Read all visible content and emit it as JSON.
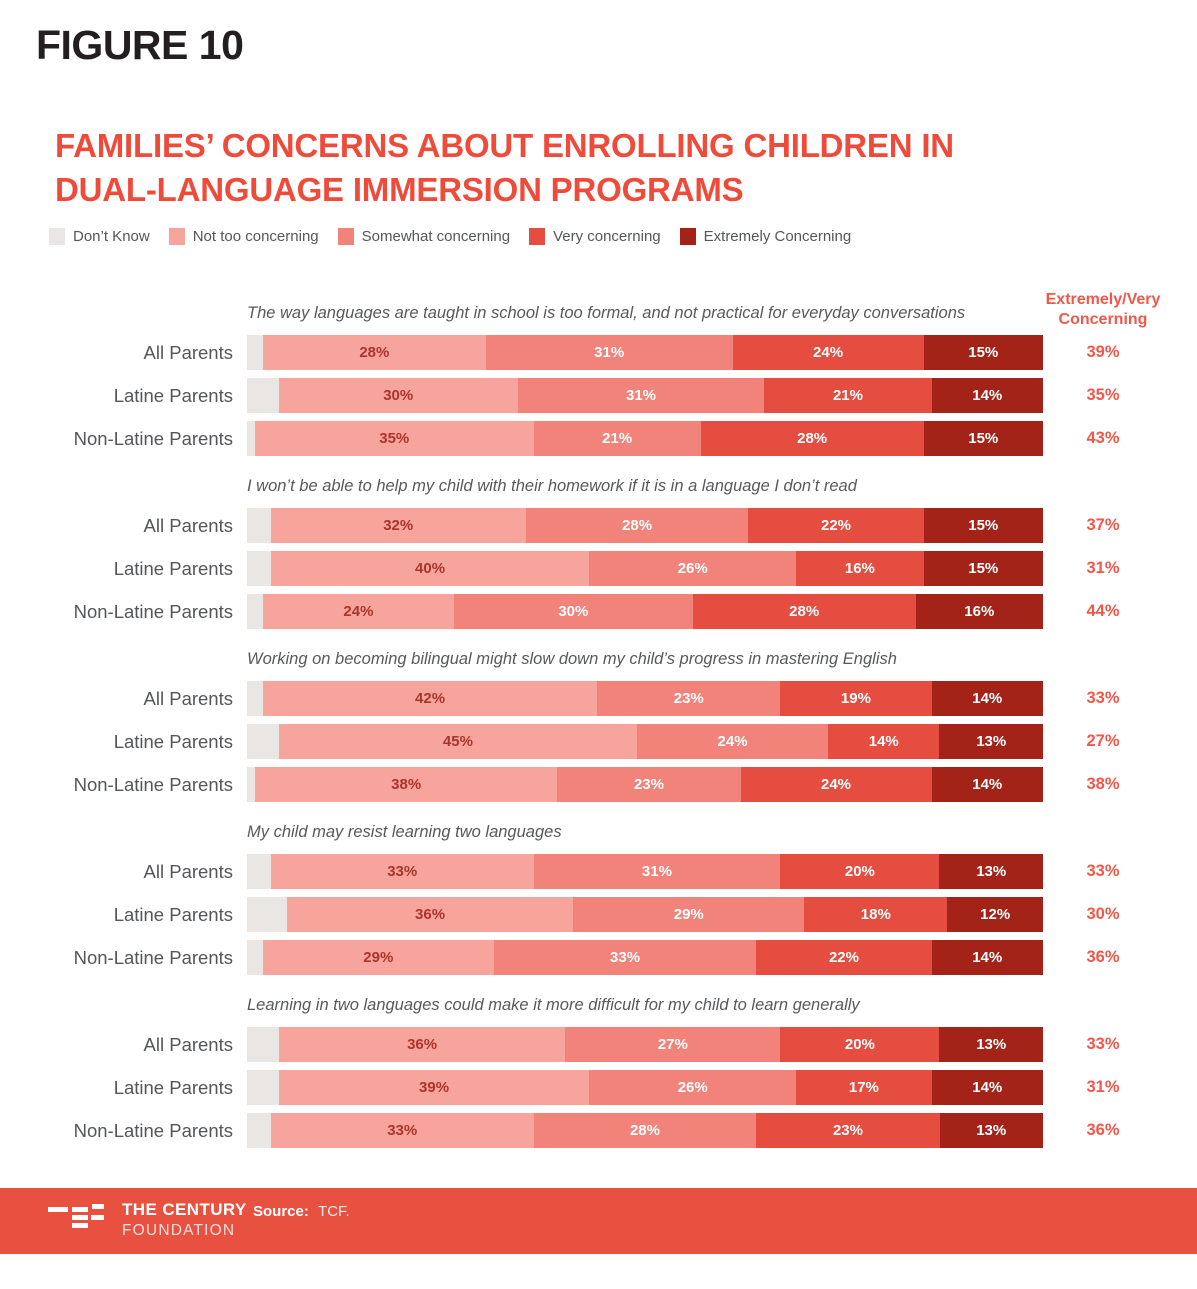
{
  "header": {
    "figure_label": "FIGURE 10"
  },
  "title": {
    "line1": "FAMILIES’ CONCERNS ABOUT ENROLLING CHILDREN IN",
    "line2": "DUAL-LANGUAGE IMMERSION PROGRAMS",
    "color": "#ef4b3a"
  },
  "legend": {
    "items": [
      {
        "label": "Don’t Know",
        "color": "#e9e6e4"
      },
      {
        "label": "Not too concerning",
        "color": "#f7a49c"
      },
      {
        "label": "Somewhat concerning",
        "color": "#f2837b"
      },
      {
        "label": "Very concerning",
        "color": "#e44d40"
      },
      {
        "label": "Extremely Concerning",
        "color": "#a32318"
      }
    ]
  },
  "summary_column": {
    "header": "Extremely/Very Concerning",
    "color": "#f25749"
  },
  "chart_data": {
    "type": "bar",
    "variant": "horizontal-100pct-stacked",
    "unit": "%",
    "xlim": [
      0,
      100
    ],
    "series_names": [
      "Don’t Know",
      "Not too concerning",
      "Somewhat concerning",
      "Very concerning",
      "Extremely Concerning"
    ],
    "row_categories": [
      "All Parents",
      "Latine Parents",
      "Non-Latine Parents"
    ],
    "summary_definition": "Extremely/Very Concerning",
    "groups": [
      {
        "question": "The way languages are taught in school is too formal, and not practical for everyday conversations",
        "rows": [
          {
            "label": "All Parents",
            "values": [
              2,
              28,
              31,
              24,
              15
            ],
            "summary": "39%"
          },
          {
            "label": "Latine Parents",
            "values": [
              4,
              30,
              31,
              21,
              14
            ],
            "summary": "35%"
          },
          {
            "label": "Non-Latine Parents",
            "values": [
              1,
              35,
              21,
              28,
              15
            ],
            "summary": "43%"
          }
        ]
      },
      {
        "question": "I won’t be able to help my child with their homework if it is in a language I don’t read",
        "rows": [
          {
            "label": "All Parents",
            "values": [
              3,
              32,
              28,
              22,
              15
            ],
            "summary": "37%"
          },
          {
            "label": "Latine Parents",
            "values": [
              3,
              40,
              26,
              16,
              15
            ],
            "summary": "31%"
          },
          {
            "label": "Non-Latine Parents",
            "values": [
              2,
              24,
              30,
              28,
              16
            ],
            "summary": "44%"
          }
        ]
      },
      {
        "question": "Working on becoming bilingual might slow down my child’s progress in mastering English",
        "rows": [
          {
            "label": "All Parents",
            "values": [
              2,
              42,
              23,
              19,
              14
            ],
            "summary": "33%"
          },
          {
            "label": "Latine Parents",
            "values": [
              4,
              45,
              24,
              14,
              13
            ],
            "summary": "27%"
          },
          {
            "label": "Non-Latine Parents",
            "values": [
              1,
              38,
              23,
              24,
              14
            ],
            "summary": "38%"
          }
        ]
      },
      {
        "question": "My child may resist learning two languages",
        "rows": [
          {
            "label": "All Parents",
            "values": [
              3,
              33,
              31,
              20,
              13
            ],
            "summary": "33%"
          },
          {
            "label": "Latine Parents",
            "values": [
              5,
              36,
              29,
              18,
              12
            ],
            "summary": "30%"
          },
          {
            "label": "Non-Latine Parents",
            "values": [
              2,
              29,
              33,
              22,
              14
            ],
            "summary": "36%"
          }
        ]
      },
      {
        "question": "Learning in two languages could make it more difficult for my child to learn generally",
        "rows": [
          {
            "label": "All Parents",
            "values": [
              4,
              36,
              27,
              20,
              13
            ],
            "summary": "33%"
          },
          {
            "label": "Latine Parents",
            "values": [
              4,
              39,
              26,
              17,
              14
            ],
            "summary": "31%"
          },
          {
            "label": "Non-Latine Parents",
            "values": [
              3,
              33,
              28,
              23,
              13
            ],
            "summary": "36%"
          }
        ]
      }
    ]
  },
  "colors": {
    "page_bg": "#ffffff",
    "figure_label": "#231f20",
    "title_red": "#ef4b3a",
    "text_gray": "#55565a",
    "question_gray": "#58595b",
    "summary_red": "#f25749",
    "label_on_light": "#ab352c",
    "label_on_dark": "#ffffff",
    "footer_bg": "#e8503f"
  },
  "footer": {
    "brand_line1": "THE CENTURY",
    "brand_line2": "FOUNDATION",
    "source_label": "Source:",
    "source_value": "TCF."
  }
}
